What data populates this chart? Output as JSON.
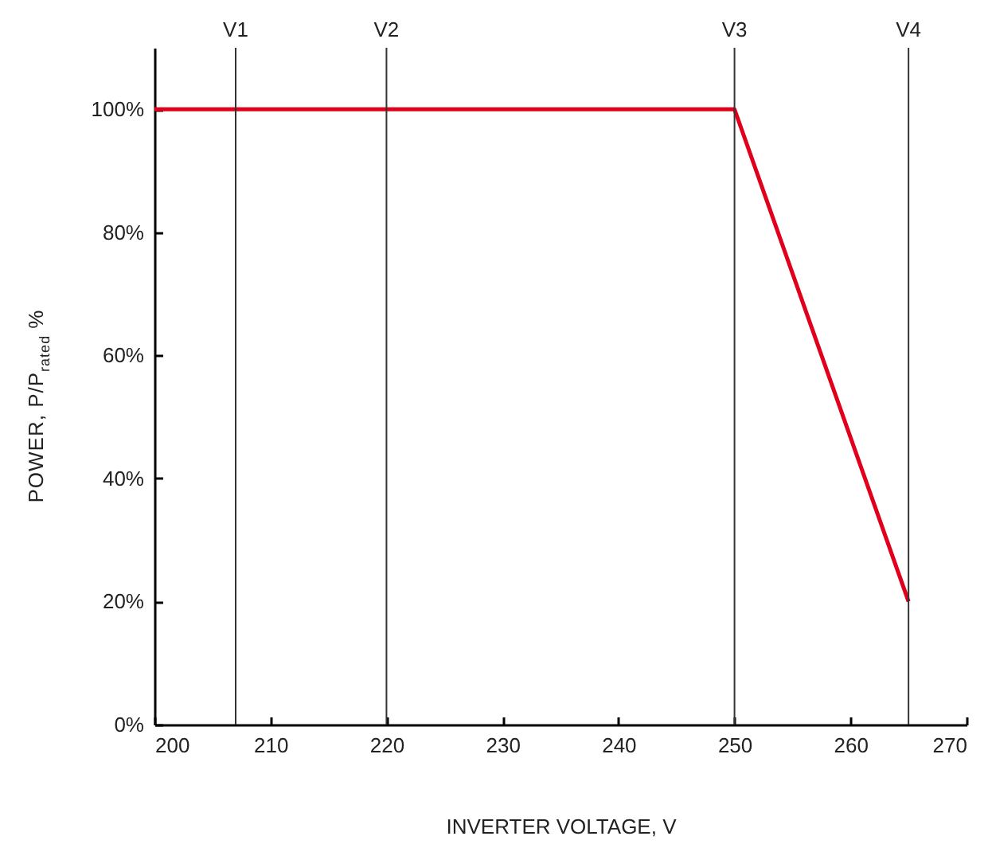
{
  "chart_data": {
    "type": "line",
    "xlabel": "INVERTER VOLTAGE, V",
    "ylabel": "POWER, P/P$_{rated}$ %",
    "x": [
      200,
      250,
      265
    ],
    "series": [
      {
        "color": "#e0001b",
        "values": [
          100,
          100,
          20
        ]
      }
    ],
    "xlim": [
      200,
      270
    ],
    "xticks": [
      200,
      210,
      220,
      230,
      240,
      250,
      260,
      270
    ],
    "ylim": [
      0,
      110
    ],
    "yticks": [
      {
        "value": 0,
        "label": "0%"
      },
      {
        "value": 20,
        "label": "20%"
      },
      {
        "value": 40,
        "label": "40%"
      },
      {
        "value": 60,
        "label": "60%"
      },
      {
        "value": 80,
        "label": "80%"
      },
      {
        "value": 100,
        "label": "100%"
      }
    ],
    "ref_lines": [
      {
        "axis": "x",
        "value": 207,
        "label": "V1"
      },
      {
        "axis": "x",
        "value": 220,
        "label": "V2"
      },
      {
        "axis": "x",
        "value": 250,
        "label": "V3"
      },
      {
        "axis": "x",
        "value": 265,
        "label": "V4"
      }
    ],
    "grid": false,
    "marker": "none",
    "line_style": "solid"
  }
}
